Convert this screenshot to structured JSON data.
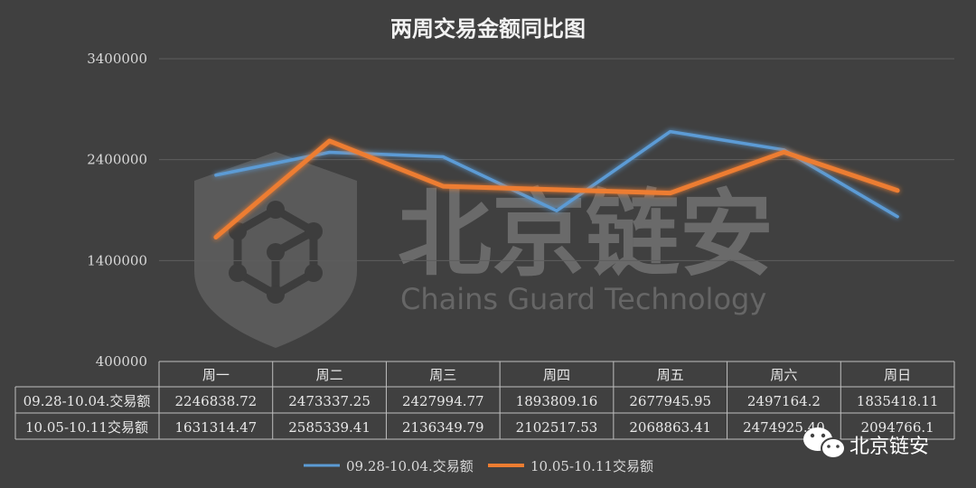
{
  "chart_data": {
    "type": "line",
    "title": "两周交易金额同比图",
    "categories": [
      "周一",
      "周二",
      "周三",
      "周四",
      "周五",
      "周六",
      "周日"
    ],
    "ylim": [
      400000,
      3400000
    ],
    "yticks": [
      "3400000",
      "2400000",
      "1400000",
      "400000"
    ],
    "ytick_values": [
      3400000,
      2400000,
      1400000,
      400000
    ],
    "grid": true,
    "legend": "bottom",
    "series": [
      {
        "name": "09.28-10.04.交易额",
        "color": "#5b9bd5",
        "values": [
          2246838.72,
          2473337.25,
          2427994.77,
          1893809.16,
          2677945.95,
          2497164.2,
          1835418.11
        ],
        "labels": [
          "2246838.72",
          "2473337.25",
          "2427994.77",
          "1893809.16",
          "2677945.95",
          "2497164.2",
          "1835418.11"
        ]
      },
      {
        "name": "10.05-10.11交易额",
        "color": "#ed7d31",
        "values": [
          1631314.47,
          2585339.41,
          2136349.79,
          2102517.53,
          2068863.41,
          2474925.4,
          2094766.1
        ],
        "labels": [
          "1631314.47",
          "2585339.41",
          "2136349.79",
          "2102517.53",
          "2068863.41",
          "2474925.40",
          "2094766.1"
        ]
      }
    ]
  },
  "watermark": {
    "name_cn": "北京链安",
    "name_en": "Chains Guard Technology"
  },
  "badge": {
    "icon": "wechat-icon",
    "label": "北京链安"
  }
}
